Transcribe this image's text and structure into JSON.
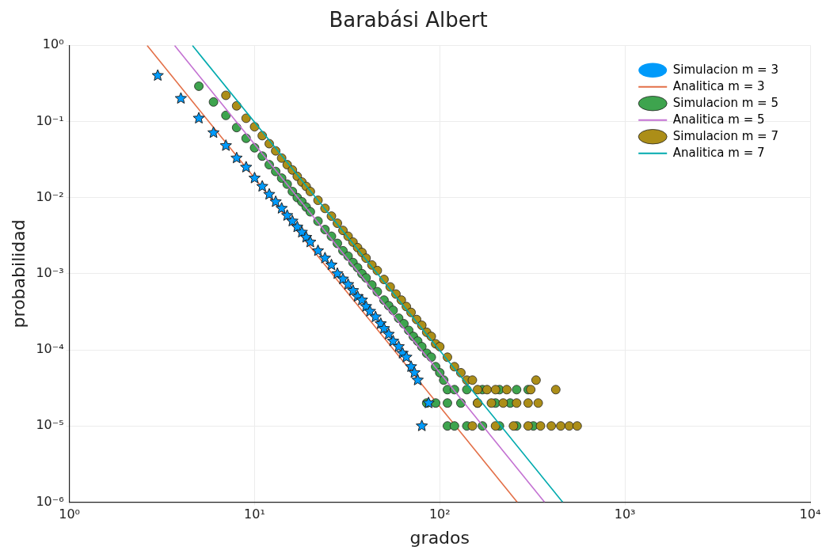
{
  "chart_data": {
    "type": "scatter",
    "title": "Barabási Albert",
    "xlabel": "grados",
    "ylabel": "probabilidad",
    "log": "xy",
    "grid": true,
    "legend": "top right",
    "xlim": [
      1,
      10000
    ],
    "xticks": [
      {
        "value": 1,
        "label": "10⁰"
      },
      {
        "value": 10,
        "label": "10¹"
      },
      {
        "value": 100,
        "label": "10²"
      },
      {
        "value": 1000,
        "label": "10³"
      },
      {
        "value": 10000,
        "label": "10⁴"
      }
    ],
    "ylim": [
      1e-06,
      1
    ],
    "yticks": [
      {
        "value": 1e-06,
        "label": "10⁻⁶"
      },
      {
        "value": 1e-05,
        "label": "10⁻⁵"
      },
      {
        "value": 0.0001,
        "label": "10⁻⁴"
      },
      {
        "value": 0.001,
        "label": "10⁻³"
      },
      {
        "value": 0.01,
        "label": "10⁻²"
      },
      {
        "value": 0.1,
        "label": "10⁻¹"
      },
      {
        "value": 1,
        "label": "10⁰"
      }
    ],
    "series": [
      {
        "name": "Simulacion m = 3",
        "type": "scatter",
        "marker": "star",
        "color": "#009afa",
        "x": [
          3,
          4,
          5,
          6,
          7,
          8,
          9,
          10,
          11,
          12,
          13,
          14,
          15,
          16,
          17,
          18,
          19,
          20,
          22,
          24,
          26,
          28,
          30,
          32,
          34,
          36,
          38,
          40,
          42,
          45,
          48,
          50,
          53,
          56,
          60,
          63,
          66,
          70,
          73,
          76,
          80,
          87
        ],
        "values": [
          0.4,
          0.2,
          0.11,
          0.071,
          0.048,
          0.033,
          0.025,
          0.018,
          0.014,
          0.011,
          0.0088,
          0.0072,
          0.0058,
          0.0049,
          0.0041,
          0.0035,
          0.003,
          0.0026,
          0.002,
          0.0016,
          0.0013,
          0.001,
          0.00085,
          0.00072,
          0.0006,
          0.0005,
          0.00045,
          0.00037,
          0.00032,
          0.00027,
          0.00022,
          0.00019,
          0.00016,
          0.00013,
          0.00011,
          9e-05,
          8e-05,
          6e-05,
          5e-05,
          4e-05,
          1e-05,
          2e-05
        ]
      },
      {
        "name": "Analitica m = 3",
        "type": "line",
        "marker": "none",
        "color": "#e36f47",
        "x": [
          2.63,
          262
        ],
        "values": [
          0.99,
          1e-06
        ]
      },
      {
        "name": "Simulacion m = 5",
        "type": "scatter",
        "marker": "circle",
        "color": "#3ea44e",
        "x": [
          5,
          6,
          7,
          8,
          9,
          10,
          11,
          12,
          13,
          14,
          15,
          16,
          17,
          18,
          19,
          20,
          22,
          24,
          26,
          28,
          30,
          32,
          34,
          36,
          38,
          40,
          43,
          46,
          50,
          53,
          56,
          60,
          64,
          68,
          72,
          76,
          80,
          85,
          90,
          95,
          100,
          105,
          110,
          120,
          140,
          170,
          210,
          260,
          300,
          85,
          95,
          110,
          130,
          160,
          200,
          240,
          110,
          120,
          140,
          170,
          210,
          260,
          320
        ],
        "values": [
          0.29,
          0.18,
          0.12,
          0.083,
          0.06,
          0.045,
          0.035,
          0.027,
          0.022,
          0.018,
          0.015,
          0.012,
          0.01,
          0.0088,
          0.0075,
          0.0065,
          0.0049,
          0.0038,
          0.0031,
          0.0025,
          0.002,
          0.0017,
          0.0014,
          0.0012,
          0.001,
          0.00088,
          0.00071,
          0.00058,
          0.00045,
          0.00038,
          0.00033,
          0.00026,
          0.00022,
          0.00018,
          0.00015,
          0.00013,
          0.00011,
          9e-05,
          8e-05,
          6e-05,
          5e-05,
          4e-05,
          3e-05,
          3e-05,
          3e-05,
          3e-05,
          3e-05,
          3e-05,
          3e-05,
          2e-05,
          2e-05,
          2e-05,
          2e-05,
          2e-05,
          2e-05,
          2e-05,
          1e-05,
          1e-05,
          1e-05,
          1e-05,
          1e-05,
          1e-05,
          1e-05
        ]
      },
      {
        "name": "Analitica m = 5",
        "type": "line",
        "marker": "none",
        "color": "#c371d2",
        "x": [
          3.7,
          368
        ],
        "values": [
          0.99,
          1e-06
        ]
      },
      {
        "name": "Simulacion m = 7",
        "type": "scatter",
        "marker": "circle",
        "color": "#ac8e18",
        "x": [
          7,
          8,
          9,
          10,
          11,
          12,
          13,
          14,
          15,
          16,
          17,
          18,
          19,
          20,
          22,
          24,
          26,
          28,
          30,
          32,
          34,
          36,
          38,
          40,
          43,
          46,
          50,
          54,
          58,
          62,
          66,
          70,
          75,
          80,
          85,
          90,
          95,
          100,
          110,
          120,
          130,
          140,
          150,
          160,
          180,
          200,
          230,
          310,
          331,
          423,
          160,
          190,
          220,
          260,
          300,
          340,
          150,
          200,
          250,
          300,
          350,
          400,
          450,
          500,
          552
        ],
        "values": [
          0.22,
          0.16,
          0.11,
          0.085,
          0.065,
          0.051,
          0.041,
          0.033,
          0.027,
          0.023,
          0.019,
          0.016,
          0.014,
          0.012,
          0.0092,
          0.0072,
          0.0057,
          0.0046,
          0.0037,
          0.0031,
          0.0026,
          0.0022,
          0.0019,
          0.0016,
          0.0013,
          0.0011,
          0.00084,
          0.00067,
          0.00054,
          0.00045,
          0.00037,
          0.00031,
          0.00025,
          0.00021,
          0.00017,
          0.00015,
          0.00012,
          0.00011,
          8e-05,
          6e-05,
          5e-05,
          4e-05,
          4e-05,
          3e-05,
          3e-05,
          3e-05,
          3e-05,
          3e-05,
          4e-05,
          3e-05,
          2e-05,
          2e-05,
          2e-05,
          2e-05,
          2e-05,
          2e-05,
          1e-05,
          1e-05,
          1e-05,
          1e-05,
          1e-05,
          1e-05,
          1e-05,
          1e-05,
          1e-05
        ]
      },
      {
        "name": "Analitica m = 7",
        "type": "line",
        "marker": "none",
        "color": "#00aaae",
        "x": [
          4.62,
          461
        ],
        "values": [
          0.99,
          1e-06
        ]
      }
    ]
  }
}
